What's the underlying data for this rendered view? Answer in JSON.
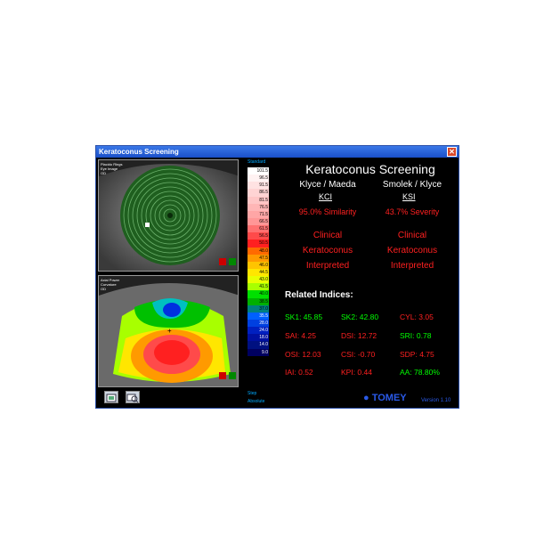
{
  "window": {
    "title": "Keratoconus Screening",
    "close_label": "✕"
  },
  "top_panel": {
    "side": "OD",
    "labels": [
      "Placido Rings",
      "Eye Image",
      "OD"
    ]
  },
  "bottom_panel": {
    "side": "OD",
    "labels": [
      "Axial Power",
      "Curvature",
      "OD"
    ]
  },
  "scale": {
    "title": "Standard",
    "values": [
      "101.5",
      "96.5",
      "91.5",
      "86.5",
      "81.5",
      "76.5",
      "71.5",
      "66.5",
      "61.5",
      "56.5",
      "50.5",
      "48.0",
      "47.5",
      "46.0",
      "44.5",
      "43.0",
      "41.5",
      "40.0",
      "38.5",
      "37.0",
      "35.5",
      "28.0",
      "24.0",
      "18.0",
      "14.0",
      "9.0"
    ],
    "colors": [
      "#ffffff",
      "#fff2f2",
      "#ffe2e2",
      "#ffd4d4",
      "#ffc6c6",
      "#ffb6b6",
      "#ffa6a6",
      "#ff9696",
      "#ff7070",
      "#ff4a4a",
      "#ff2020",
      "#ff6a00",
      "#ff9a00",
      "#ffc400",
      "#ffe600",
      "#e8ff00",
      "#a8ff00",
      "#00e000",
      "#00b000",
      "#008080",
      "#0060ff",
      "#0040e0",
      "#0020c0",
      "#0010a0",
      "#001080",
      "#000060"
    ],
    "step_label": "Step",
    "mode_label": "Absolute"
  },
  "heading": "Keratoconus Screening",
  "left_col": {
    "title": "Klyce / Maeda",
    "index": "KCI",
    "result": "95.0% Similarity",
    "interp": [
      "Clinical",
      "Keratoconus",
      "Interpreted"
    ]
  },
  "right_col": {
    "title": "Smolek / Klyce",
    "index": "KSI",
    "result": "43.7% Severity",
    "interp": [
      "Clinical",
      "Keratoconus",
      "Interpreted"
    ]
  },
  "related_title": "Related Indices:",
  "metrics": [
    {
      "label": "SK1: 45.85",
      "color": "#00ff00"
    },
    {
      "label": "SK2: 42.80",
      "color": "#00ff00"
    },
    {
      "label": "CYL:  3.05",
      "color": "#ff2020"
    },
    {
      "label": "SAI: 4.25",
      "color": "#ff2020"
    },
    {
      "label": "DSI: 12.72",
      "color": "#ff2020"
    },
    {
      "label": "SRI: 0.78",
      "color": "#00ff00"
    },
    {
      "label": "OSI: 12.03",
      "color": "#ff2020"
    },
    {
      "label": "CSI: -0.70",
      "color": "#ff2020"
    },
    {
      "label": "SDP: 4.75",
      "color": "#ff2020"
    },
    {
      "label": "IAI: 0.52",
      "color": "#ff2020"
    },
    {
      "label": "KPI: 0.44",
      "color": "#ff2020"
    },
    {
      "label": "AA: 78.80%",
      "color": "#00ff00"
    }
  ],
  "brand": "TOMEY",
  "version": "Version 1.10"
}
